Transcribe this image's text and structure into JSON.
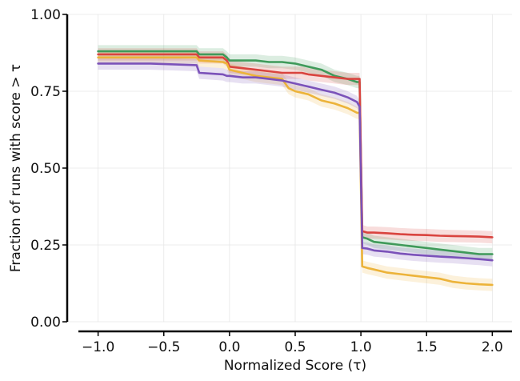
{
  "chart_data": {
    "type": "line",
    "title": "",
    "xlabel": "Normalized Score (τ)",
    "ylabel": "Fraction of runs with score > τ",
    "xlim": [
      -1.15,
      2.15
    ],
    "ylim": [
      0.0,
      1.0
    ],
    "grid": true,
    "legend": "none",
    "x_ticks": [
      -1.0,
      -0.5,
      0.0,
      0.5,
      1.0,
      1.5,
      2.0
    ],
    "x_tick_labels": [
      "−1.0",
      "−0.5",
      "0.0",
      "0.5",
      "1.0",
      "1.5",
      "2.0"
    ],
    "y_ticks": [
      0.0,
      0.25,
      0.5,
      0.75,
      1.0
    ],
    "y_tick_labels": [
      "0.00",
      "0.25",
      "0.50",
      "0.75",
      "1.00"
    ],
    "series": [
      {
        "name": "green",
        "color": "#3f9a5a",
        "band": 0.02,
        "x": [
          -1.0,
          -0.6,
          -0.25,
          -0.23,
          -0.05,
          -0.02,
          0.0,
          0.1,
          0.2,
          0.3,
          0.4,
          0.5,
          0.55,
          0.6,
          0.7,
          0.8,
          0.9,
          0.97,
          0.99,
          1.01,
          1.05,
          1.1,
          1.2,
          1.3,
          1.4,
          1.5,
          1.6,
          1.7,
          1.8,
          1.9,
          2.0
        ],
        "y": [
          0.88,
          0.88,
          0.88,
          0.87,
          0.87,
          0.86,
          0.85,
          0.85,
          0.85,
          0.845,
          0.845,
          0.84,
          0.835,
          0.83,
          0.82,
          0.8,
          0.79,
          0.78,
          0.78,
          0.275,
          0.27,
          0.26,
          0.255,
          0.25,
          0.245,
          0.24,
          0.235,
          0.23,
          0.225,
          0.22,
          0.22
        ]
      },
      {
        "name": "red",
        "color": "#d9443f",
        "band": 0.02,
        "x": [
          -1.0,
          -0.6,
          -0.25,
          -0.23,
          -0.05,
          -0.02,
          0.0,
          0.1,
          0.2,
          0.3,
          0.4,
          0.5,
          0.55,
          0.6,
          0.7,
          0.8,
          0.9,
          0.97,
          0.99,
          1.01,
          1.05,
          1.1,
          1.2,
          1.3,
          1.4,
          1.5,
          1.6,
          1.7,
          1.8,
          1.9,
          2.0
        ],
        "y": [
          0.87,
          0.87,
          0.87,
          0.86,
          0.86,
          0.85,
          0.83,
          0.825,
          0.82,
          0.815,
          0.81,
          0.81,
          0.81,
          0.805,
          0.8,
          0.795,
          0.79,
          0.79,
          0.79,
          0.295,
          0.29,
          0.29,
          0.288,
          0.285,
          0.283,
          0.282,
          0.28,
          0.279,
          0.278,
          0.277,
          0.275
        ]
      },
      {
        "name": "yellow",
        "color": "#ecb33a",
        "band": 0.02,
        "x": [
          -1.0,
          -0.6,
          -0.25,
          -0.23,
          -0.05,
          -0.02,
          0.0,
          0.1,
          0.2,
          0.3,
          0.4,
          0.45,
          0.5,
          0.6,
          0.7,
          0.8,
          0.9,
          0.97,
          0.99,
          1.01,
          1.05,
          1.1,
          1.2,
          1.3,
          1.4,
          1.5,
          1.6,
          1.7,
          1.8,
          1.9,
          2.0
        ],
        "y": [
          0.86,
          0.86,
          0.86,
          0.85,
          0.845,
          0.84,
          0.82,
          0.81,
          0.8,
          0.795,
          0.79,
          0.76,
          0.75,
          0.74,
          0.72,
          0.71,
          0.695,
          0.68,
          0.68,
          0.18,
          0.175,
          0.17,
          0.16,
          0.155,
          0.15,
          0.145,
          0.14,
          0.13,
          0.125,
          0.122,
          0.12
        ]
      },
      {
        "name": "purple",
        "color": "#7b52b9",
        "band": 0.02,
        "x": [
          -1.0,
          -0.6,
          -0.25,
          -0.23,
          -0.05,
          -0.02,
          0.0,
          0.1,
          0.2,
          0.3,
          0.4,
          0.5,
          0.6,
          0.7,
          0.8,
          0.9,
          0.97,
          0.99,
          1.01,
          1.05,
          1.1,
          1.2,
          1.3,
          1.4,
          1.5,
          1.6,
          1.7,
          1.8,
          1.9,
          2.0
        ],
        "y": [
          0.84,
          0.84,
          0.835,
          0.81,
          0.805,
          0.8,
          0.8,
          0.795,
          0.795,
          0.79,
          0.785,
          0.775,
          0.765,
          0.755,
          0.745,
          0.73,
          0.715,
          0.7,
          0.24,
          0.238,
          0.232,
          0.228,
          0.222,
          0.218,
          0.215,
          0.212,
          0.21,
          0.207,
          0.204,
          0.2
        ]
      }
    ]
  }
}
